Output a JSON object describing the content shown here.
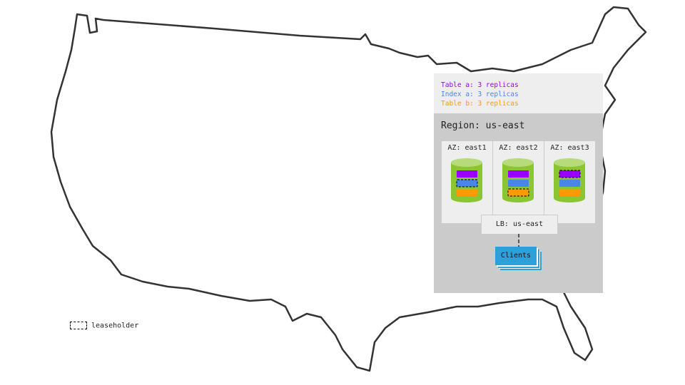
{
  "legend": {
    "table_a": "Table a: 3 replicas",
    "index_a": "Index a: 3 replicas",
    "table_b": "Table b: 3 replicas"
  },
  "colors": {
    "table_a": "#9900ff",
    "index_a": "#4a86e8",
    "table_b": "#ff9900",
    "node": "#8bc531",
    "clients": "#2d9fd9"
  },
  "region": "Region: us-east",
  "zones": [
    {
      "label": "AZ: east1",
      "leaseholder": "index_a"
    },
    {
      "label": "AZ: east2",
      "leaseholder": "table_b"
    },
    {
      "label": "AZ: east3",
      "leaseholder": "table_a"
    }
  ],
  "lb": "LB: us-east",
  "clients": "Clients",
  "leaseholder_legend": "leaseholder"
}
